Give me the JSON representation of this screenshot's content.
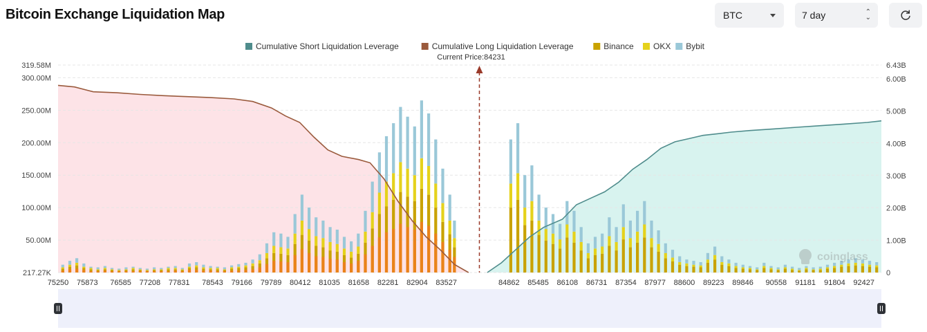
{
  "header": {
    "title": "Bitcoin Exchange Liquidation Map",
    "coin_select": "BTC",
    "range_select": "7 day"
  },
  "icons": {
    "coin_caret": "chevron-down-icon",
    "range_caret": "up-down-arrows-icon",
    "refresh": "refresh-icon",
    "watermark": "coinglass-logo"
  },
  "colors": {
    "short_cum": "#4f8c8c",
    "short_fill": "#d8f3ef",
    "long_cum": "#9a5a3c",
    "long_fill": "#fde3e7",
    "binance": "#c9a200",
    "okx": "#e5d21c",
    "bybit": "#9ac8d8",
    "liq_orange": "#f07d1e",
    "current_price": "#9a3a2a"
  },
  "chart_data": {
    "type": "bar",
    "legend": [
      "Cumulative Short Liquidation Leverage",
      "Cumulative Long Liquidation Leverage",
      "Binance",
      "OKX",
      "Bybit"
    ],
    "current_price_label": "Current Price:84231",
    "current_price": 84231,
    "watermark": "coinglass",
    "x_ticks": [
      "75250",
      "75873",
      "76585",
      "77208",
      "77831",
      "78543",
      "79166",
      "79789",
      "80412",
      "81035",
      "81658",
      "82281",
      "82904",
      "83527",
      "84862",
      "85485",
      "86108",
      "86731",
      "87354",
      "87977",
      "88600",
      "89223",
      "89846",
      "90558",
      "91181",
      "91804",
      "92427"
    ],
    "y_left_ticks": [
      "217.27K",
      "50.00M",
      "100.00M",
      "150.00M",
      "200.00M",
      "250.00M",
      "300.00M",
      "319.58M"
    ],
    "y_left_values": [
      0,
      50,
      100,
      150,
      200,
      250,
      300,
      319.58
    ],
    "y_right_ticks": [
      "0",
      "1.00B",
      "2.00B",
      "3.00B",
      "4.00B",
      "5.00B",
      "6.00B",
      "6.43B"
    ],
    "y_right_values": [
      0,
      1,
      2,
      3,
      4,
      5,
      6,
      6.43
    ],
    "x_range": [
      75250,
      92800
    ],
    "y_left_range_millions": [
      0,
      319.58
    ],
    "y_right_range_billions": [
      0,
      6.43
    ],
    "bar_values_millions": {
      "x": [
        75350,
        75500,
        75650,
        75800,
        75950,
        76100,
        76250,
        76400,
        76550,
        76700,
        76850,
        77000,
        77150,
        77300,
        77450,
        77600,
        77750,
        77900,
        78050,
        78200,
        78350,
        78500,
        78650,
        78800,
        78950,
        79100,
        79250,
        79400,
        79550,
        79700,
        79850,
        80000,
        80150,
        80300,
        80450,
        80600,
        80750,
        80900,
        81050,
        81200,
        81350,
        81500,
        81650,
        81800,
        81950,
        82100,
        82250,
        82400,
        82550,
        82700,
        82850,
        83000,
        83150,
        83300,
        83450,
        83600,
        83700,
        84900,
        85050,
        85200,
        85350,
        85500,
        85650,
        85800,
        85950,
        86100,
        86250,
        86400,
        86550,
        86700,
        86850,
        87000,
        87150,
        87300,
        87450,
        87600,
        87750,
        87900,
        88050,
        88200,
        88350,
        88500,
        88650,
        88800,
        88950,
        89100,
        89250,
        89400,
        89550,
        89700,
        89850,
        90000,
        90150,
        90300,
        90450,
        90600,
        90750,
        90900,
        91050,
        91200,
        91350,
        91500,
        91650,
        91800,
        91950,
        92100,
        92250,
        92400,
        92550,
        92700
      ],
      "total": [
        12,
        18,
        22,
        14,
        9,
        8,
        10,
        7,
        6,
        8,
        9,
        7,
        6,
        8,
        7,
        9,
        10,
        7,
        14,
        16,
        12,
        10,
        9,
        8,
        11,
        13,
        15,
        20,
        28,
        45,
        62,
        60,
        55,
        90,
        120,
        100,
        85,
        80,
        70,
        66,
        55,
        48,
        60,
        95,
        140,
        185,
        210,
        230,
        255,
        240,
        225,
        265,
        245,
        205,
        160,
        120,
        80,
        205,
        230,
        150,
        165,
        120,
        100,
        90,
        75,
        110,
        95,
        70,
        45,
        55,
        60,
        85,
        70,
        105,
        80,
        95,
        110,
        80,
        65,
        45,
        35,
        25,
        20,
        18,
        16,
        30,
        40,
        25,
        20,
        15,
        12,
        10,
        8,
        15,
        10,
        8,
        12,
        9,
        7,
        10,
        8,
        9,
        12,
        15,
        18,
        20,
        22,
        20,
        18,
        16
      ],
      "binance": [
        6,
        9,
        11,
        7,
        5,
        4,
        5,
        4,
        3,
        4,
        5,
        4,
        3,
        4,
        4,
        5,
        5,
        4,
        7,
        8,
        6,
        5,
        5,
        4,
        6,
        7,
        8,
        10,
        14,
        22,
        30,
        29,
        27,
        44,
        58,
        49,
        41,
        39,
        34,
        32,
        27,
        23,
        29,
        46,
        68,
        90,
        102,
        112,
        124,
        117,
        110,
        129,
        120,
        100,
        78,
        59,
        39,
        100,
        112,
        73,
        80,
        58,
        49,
        44,
        37,
        54,
        46,
        34,
        22,
        27,
        29,
        41,
        34,
        51,
        39,
        46,
        54,
        39,
        32,
        22,
        17,
        12,
        10,
        9,
        8,
        15,
        20,
        12,
        10,
        7,
        6,
        5,
        4,
        7,
        5,
        4,
        6,
        4,
        3,
        5,
        4,
        4,
        6,
        7,
        9,
        10,
        11,
        10,
        9,
        8
      ],
      "okx": [
        2,
        3,
        4,
        2,
        2,
        1,
        2,
        1,
        1,
        1,
        2,
        1,
        1,
        1,
        1,
        2,
        2,
        1,
        2,
        3,
        2,
        2,
        2,
        1,
        2,
        2,
        3,
        4,
        5,
        8,
        11,
        10,
        10,
        16,
        22,
        18,
        15,
        14,
        13,
        12,
        10,
        9,
        11,
        17,
        25,
        33,
        38,
        41,
        46,
        43,
        40,
        47,
        44,
        37,
        29,
        21,
        14,
        37,
        41,
        27,
        30,
        22,
        18,
        16,
        14,
        20,
        17,
        13,
        8,
        10,
        11,
        15,
        13,
        19,
        14,
        17,
        20,
        14,
        12,
        8,
        6,
        4,
        4,
        3,
        3,
        5,
        7,
        4,
        4,
        3,
        2,
        2,
        1,
        3,
        2,
        1,
        2,
        2,
        1,
        2,
        1,
        2,
        2,
        3,
        3,
        4,
        4,
        4,
        3,
        3
      ],
      "long_liq": [
        3,
        5,
        6,
        4,
        2,
        2,
        3,
        2,
        2,
        2,
        2,
        2,
        2,
        2,
        2,
        2,
        3,
        2,
        4,
        4,
        3,
        3,
        2,
        2,
        3,
        3,
        4,
        5,
        8,
        13,
        18,
        17,
        16,
        27,
        36,
        30,
        25,
        24,
        21,
        20,
        16,
        14,
        18,
        28,
        41,
        54,
        62,
        67,
        75,
        70,
        66,
        78,
        72,
        60,
        47,
        35,
        24,
        0,
        0,
        0,
        0,
        0,
        0,
        0,
        0,
        0,
        0,
        0,
        0,
        0,
        0,
        0,
        0,
        0,
        0,
        0,
        0,
        0,
        0,
        0,
        0,
        0,
        0,
        0,
        0,
        0,
        0,
        0,
        0,
        0,
        0,
        0,
        0,
        0,
        0,
        0,
        0,
        0,
        0,
        0,
        0,
        0,
        0,
        0,
        0,
        0,
        0,
        0,
        0,
        0
      ]
    },
    "cumulative_long_billions": {
      "x": [
        75250,
        75600,
        76000,
        76500,
        77000,
        77500,
        78000,
        78500,
        79000,
        79400,
        79800,
        80100,
        80400,
        80700,
        81000,
        81300,
        81658,
        81900,
        82200,
        82500,
        82800,
        83100,
        83400,
        83700,
        84000
      ],
      "y": [
        5.8,
        5.75,
        5.6,
        5.57,
        5.52,
        5.48,
        5.45,
        5.42,
        5.38,
        5.3,
        5.1,
        4.85,
        4.65,
        4.2,
        3.8,
        3.6,
        3.5,
        3.4,
        2.9,
        2.2,
        1.6,
        1.1,
        0.7,
        0.25,
        0
      ]
    },
    "cumulative_short_billions": {
      "x": [
        84400,
        84700,
        85000,
        85300,
        85600,
        86000,
        86300,
        86600,
        86900,
        87200,
        87500,
        87800,
        88100,
        88400,
        88700,
        89000,
        89300,
        89600,
        90000,
        90500,
        91000,
        91500,
        92000,
        92500,
        92800
      ],
      "y": [
        0,
        0.3,
        0.7,
        1.1,
        1.4,
        1.65,
        2.1,
        2.3,
        2.5,
        2.8,
        3.2,
        3.5,
        3.85,
        4.05,
        4.15,
        4.25,
        4.3,
        4.35,
        4.4,
        4.45,
        4.5,
        4.55,
        4.6,
        4.65,
        4.7
      ]
    }
  }
}
